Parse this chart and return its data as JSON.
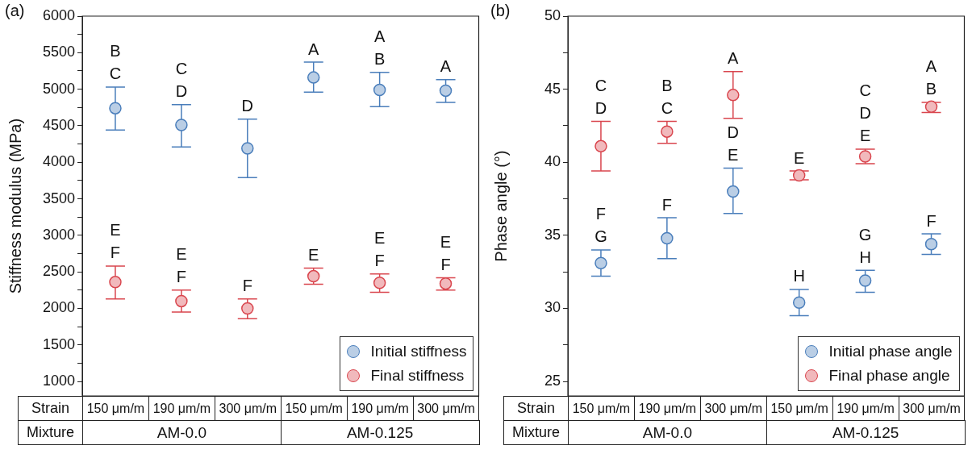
{
  "chart_data": [
    {
      "type": "scatter",
      "title": "(a)",
      "xlabel": "Strain",
      "ylabel": "Stiffness modulus (MPa)",
      "categories": [
        "150 μm/m",
        "190 μm/m",
        "300 μm/m",
        "150 μm/m",
        "190 μm/m",
        "300 μm/m"
      ],
      "series": [
        {
          "name": "Initial stiffness",
          "color": "#4a7ebb",
          "values": [
            4740,
            4510,
            4190,
            5160,
            4990,
            4980
          ],
          "errors": [
            [
              4440,
              5030
            ],
            [
              4210,
              4790
            ],
            [
              3790,
              4590
            ],
            [
              4960,
              5370
            ],
            [
              4760,
              5230
            ],
            [
              4820,
              5130
            ]
          ],
          "value_labels": [
            "B\nC",
            "C\nD",
            "D",
            "A",
            "A\nB",
            "A"
          ]
        },
        {
          "name": "Final stiffness",
          "color": "#d9464e",
          "values": [
            2360,
            2100,
            2000,
            2440,
            2350,
            2340
          ],
          "errors": [
            [
              2130,
              2580
            ],
            [
              1950,
              2250
            ],
            [
              1860,
              2130
            ],
            [
              2330,
              2550
            ],
            [
              2220,
              2470
            ],
            [
              2250,
              2420
            ]
          ],
          "value_labels": [
            "E\nF",
            "E\nF",
            "F",
            "E",
            "E\nF",
            "E\nF"
          ]
        }
      ],
      "ylim": [
        800,
        6000
      ],
      "yticks": [
        1000,
        {
          "value": 1250,
          "label": null
        },
        1500,
        {
          "value": 1750,
          "label": null
        },
        2000,
        {
          "value": 2250,
          "label": null
        },
        2500,
        {
          "value": 2750,
          "label": null
        },
        3000,
        {
          "value": 3250,
          "label": null
        },
        3500,
        {
          "value": 3750,
          "label": null
        },
        4000,
        {
          "value": 4250,
          "label": null
        },
        4500,
        {
          "value": 4750,
          "label": null
        },
        5000,
        {
          "value": 5250,
          "label": null
        },
        5500,
        {
          "value": 5750,
          "label": null
        },
        6000
      ],
      "annotations": [
        "Mixture",
        "AM-0.0",
        "AM-0.125"
      ],
      "grid": false,
      "legend": "bottom right",
      "marker": "circle"
    },
    {
      "type": "scatter",
      "title": "(b)",
      "xlabel": "Strain",
      "ylabel": "Phase angle (°)",
      "categories": [
        "150 μm/m",
        "190 μm/m",
        "300 μm/m",
        "150 μm/m",
        "190 μm/m",
        "300 μm/m"
      ],
      "series": [
        {
          "name": "Initial phase angle",
          "color": "#4a7ebb",
          "values": [
            33.1,
            34.8,
            38.0,
            30.4,
            31.9,
            34.4
          ],
          "errors": [
            [
              32.2,
              34.0
            ],
            [
              33.4,
              36.2
            ],
            [
              36.5,
              39.6
            ],
            [
              29.5,
              31.3
            ],
            [
              31.1,
              32.6
            ],
            [
              33.7,
              35.1
            ]
          ],
          "value_labels": [
            "F\nG",
            "F",
            "D\nE",
            "H",
            "G\nH",
            "F"
          ]
        },
        {
          "name": "Final phase angle",
          "color": "#d9464e",
          "values": [
            41.1,
            42.1,
            44.6,
            39.1,
            40.4,
            43.8
          ],
          "errors": [
            [
              39.4,
              42.8
            ],
            [
              41.3,
              42.8
            ],
            [
              43.0,
              46.2
            ],
            [
              38.8,
              39.4
            ],
            [
              39.9,
              40.9
            ],
            [
              43.4,
              44.1
            ]
          ],
          "value_labels": [
            "C\nD",
            "B\nC",
            "A",
            "E",
            "C\nD\nE",
            "A\nB"
          ]
        }
      ],
      "ylim": [
        24,
        50
      ],
      "yticks": [
        25,
        {
          "value": 27.5,
          "label": null
        },
        30,
        {
          "value": 32.5,
          "label": null
        },
        35,
        {
          "value": 37.5,
          "label": null
        },
        40,
        {
          "value": 42.5,
          "label": null
        },
        45,
        {
          "value": 47.5,
          "label": null
        },
        50
      ],
      "annotations": [
        "Mixture",
        "AM-0.0",
        "AM-0.125"
      ],
      "grid": false,
      "legend": "bottom right",
      "marker": "circle"
    }
  ]
}
